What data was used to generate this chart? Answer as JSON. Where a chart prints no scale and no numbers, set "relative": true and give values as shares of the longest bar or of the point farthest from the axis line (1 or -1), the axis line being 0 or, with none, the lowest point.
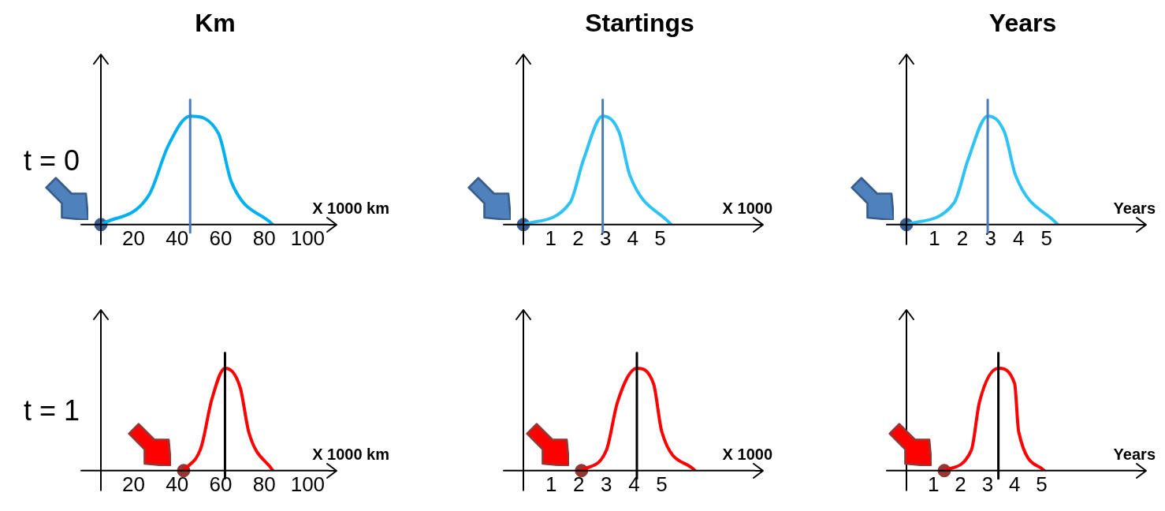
{
  "chart_data": [
    {
      "type": "line",
      "title": "Km",
      "xlabel": "X 1000 km",
      "relative": true,
      "xlim": [
        5,
        110
      ],
      "xticks": [
        20,
        40,
        60,
        80,
        100
      ],
      "annotations": [
        "t = 0"
      ],
      "ref_lines": [
        {
          "axis": "x",
          "value": 46,
          "color": "#4a7ebb"
        }
      ],
      "series": [
        {
          "color": "#00b0f0",
          "marker": "none",
          "x": [
            5,
            27,
            36,
            46,
            59,
            65,
            84
          ],
          "values": [
            0,
            0.27,
            0.73,
            1,
            0.84,
            0.39,
            0
          ]
        },
        {
          "type": "scatter",
          "color": "#3a5f93",
          "marker": "circle",
          "x": [
            5
          ],
          "values": [
            0
          ]
        }
      ]
    },
    {
      "type": "line",
      "title": "Startings",
      "xlabel": "X 1000",
      "relative": true,
      "xlim": [
        0,
        8.5
      ],
      "xticks": [
        1,
        2,
        3,
        4,
        5
      ],
      "ref_lines": [
        {
          "axis": "x",
          "value": 2.9,
          "color": "#4a7ebb"
        }
      ],
      "series": [
        {
          "color": "#2fc3f5",
          "marker": "none",
          "x": [
            0,
            1.7,
            2.2,
            2.9,
            3.5,
            3.9,
            5.4
          ],
          "values": [
            0,
            0.2,
            0.6,
            1,
            0.85,
            0.45,
            0
          ]
        },
        {
          "type": "scatter",
          "color": "#3a5f93",
          "marker": "circle",
          "x": [
            0
          ],
          "values": [
            0
          ]
        }
      ]
    },
    {
      "type": "line",
      "title": "Years",
      "xlabel": "Years",
      "relative": true,
      "xlim": [
        0,
        8.3
      ],
      "xticks": [
        1,
        2,
        3,
        4,
        5
      ],
      "ref_lines": [
        {
          "axis": "x",
          "value": 2.9,
          "color": "#4a7ebb"
        }
      ],
      "series": [
        {
          "color": "#2fc3f5",
          "marker": "none",
          "x": [
            0,
            1.7,
            2.2,
            2.9,
            3.5,
            3.9,
            5.4
          ],
          "values": [
            0,
            0.2,
            0.6,
            1,
            0.85,
            0.45,
            0
          ]
        },
        {
          "type": "scatter",
          "color": "#3a5f93",
          "marker": "circle",
          "x": [
            0
          ],
          "values": [
            0
          ]
        }
      ]
    },
    {
      "type": "line",
      "xlabel": "X 1000 km",
      "relative": true,
      "xlim": [
        5,
        110
      ],
      "xticks": [
        20,
        40,
        60,
        80,
        100
      ],
      "annotations": [
        "t = 1"
      ],
      "ref_lines": [
        {
          "axis": "x",
          "value": 62,
          "color": "#000000"
        }
      ],
      "series": [
        {
          "color": "#ff0000",
          "marker": "none",
          "x": [
            43,
            51,
            56,
            62,
            69,
            73,
            84
          ],
          "values": [
            0,
            0.225,
            0.7,
            1,
            0.81,
            0.37,
            0
          ]
        },
        {
          "type": "scatter",
          "color": "#943634",
          "marker": "circle",
          "x": [
            43
          ],
          "values": [
            0
          ]
        }
      ]
    },
    {
      "type": "line",
      "xlabel": "X 1000",
      "relative": true,
      "xlim": [
        0,
        8.4
      ],
      "xticks": [
        1,
        2,
        3,
        4,
        5
      ],
      "ref_lines": [
        {
          "axis": "x",
          "value": 4.1,
          "color": "#000000"
        }
      ],
      "series": [
        {
          "color": "#ff0000",
          "marker": "none",
          "x": [
            2.1,
            3.0,
            3.4,
            4.1,
            4.7,
            5.0,
            6.2
          ],
          "values": [
            0,
            0.2,
            0.67,
            1,
            0.85,
            0.38,
            0
          ]
        },
        {
          "type": "scatter",
          "color": "#943634",
          "marker": "circle",
          "x": [
            2.1
          ],
          "values": [
            0
          ]
        }
      ]
    },
    {
      "type": "line",
      "xlabel": "Years",
      "relative": true,
      "xlim": [
        0,
        8.6
      ],
      "xticks": [
        1,
        2,
        3,
        4,
        5
      ],
      "ref_lines": [
        {
          "axis": "x",
          "value": 3.4,
          "color": "#000000"
        }
      ],
      "series": [
        {
          "color": "#ff0000",
          "marker": "none",
          "x": [
            1.4,
            2.4,
            2.7,
            3.4,
            4.0,
            4.15,
            5.1
          ],
          "values": [
            0,
            0.2,
            0.67,
            1,
            0.85,
            0.38,
            0
          ]
        },
        {
          "type": "scatter",
          "color": "#943634",
          "marker": "circle",
          "x": [
            1.4
          ],
          "values": [
            0
          ]
        }
      ]
    }
  ]
}
